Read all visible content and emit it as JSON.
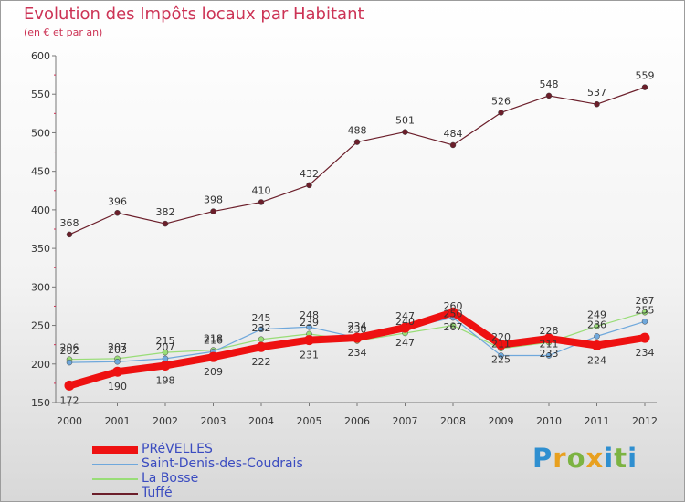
{
  "title": "Evolution des Impôts locaux par Habitant",
  "subtitle": "(en € et par an)",
  "logo": {
    "text": "Proxiti",
    "letters": [
      {
        "ch": "P",
        "color": "#2f8fd0"
      },
      {
        "ch": "r",
        "color": "#e8a01f"
      },
      {
        "ch": "o",
        "color": "#7cb342"
      },
      {
        "ch": "x",
        "color": "#e8a01f"
      },
      {
        "ch": "i",
        "color": "#2f8fd0"
      },
      {
        "ch": "t",
        "color": "#7cb342"
      },
      {
        "ch": "i",
        "color": "#2f8fd0"
      }
    ]
  },
  "chart_data": {
    "type": "line",
    "title": "Evolution des Impôts locaux par Habitant",
    "subtitle": "(en € et par an)",
    "categories": [
      "2000",
      "2001",
      "2002",
      "2003",
      "2004",
      "2005",
      "2006",
      "2007",
      "2008",
      "2009",
      "2010",
      "2011",
      "2012"
    ],
    "ylim": [
      150,
      600
    ],
    "yticks": [
      150,
      200,
      250,
      300,
      350,
      400,
      450,
      500,
      550,
      600
    ],
    "grid": false,
    "legend_position": "bottom-left",
    "series": [
      {
        "name": "Tuffé",
        "color": "#6b1e2a",
        "values": [
          368,
          396,
          382,
          398,
          410,
          432,
          488,
          501,
          484,
          526,
          548,
          537,
          559
        ]
      },
      {
        "name": "La Bosse",
        "color": "#99dd77",
        "values": [
          206,
          207,
          215,
          218,
          232,
          239,
          230,
          240,
          250,
          220,
          228,
          249,
          267
        ]
      },
      {
        "name": "Saint-Denis-des-Coudrais",
        "color": "#6fa8dc",
        "values": [
          202,
          203,
          207,
          216,
          245,
          248,
          234,
          247,
          260,
          211,
          211,
          236,
          255
        ]
      },
      {
        "name": "PRéVELLES",
        "color": "#ee1111",
        "values": [
          172,
          190,
          198,
          209,
          222,
          231,
          234,
          247,
          267,
          225,
          233,
          224,
          234
        ]
      }
    ]
  }
}
